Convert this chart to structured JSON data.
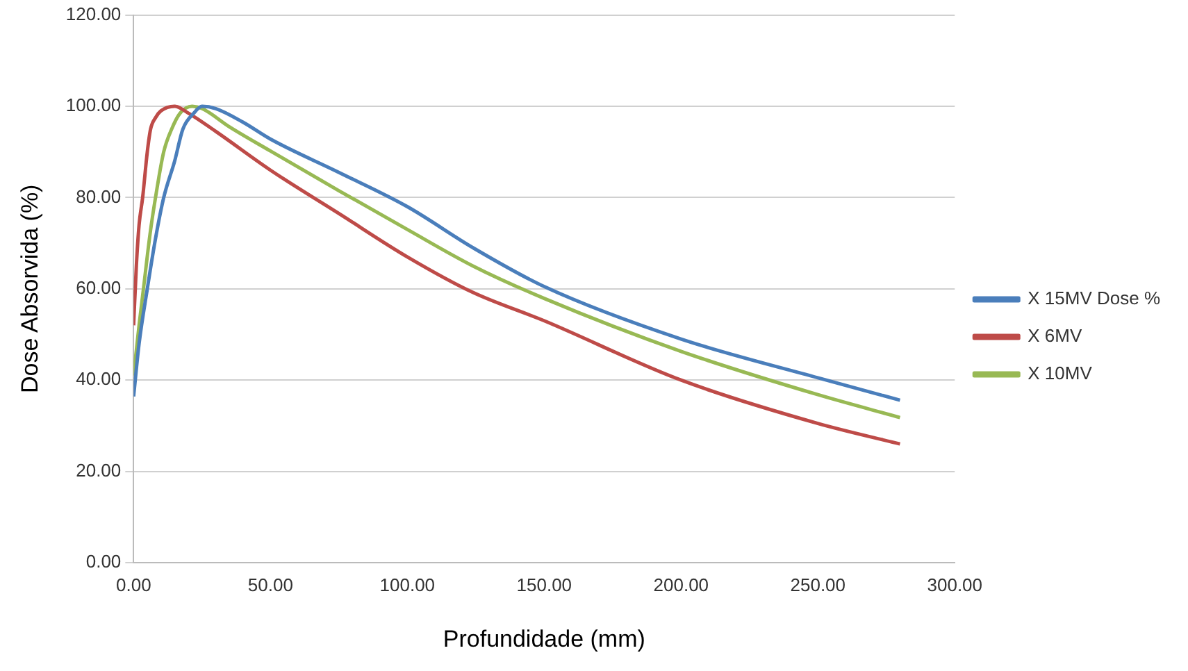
{
  "chart_data": {
    "type": "line",
    "xlabel": "Profundidade (mm)",
    "ylabel": "Dose Absorvida (%)",
    "xlim": [
      0,
      300
    ],
    "xticks": [
      {
        "value": 0,
        "label": "0.00"
      },
      {
        "value": 50,
        "label": "50.00"
      },
      {
        "value": 100,
        "label": "100.00"
      },
      {
        "value": 150,
        "label": "150.00"
      },
      {
        "value": 200,
        "label": "200.00"
      },
      {
        "value": 250,
        "label": "250.00"
      },
      {
        "value": 300,
        "label": "300.00"
      }
    ],
    "ylim": [
      0,
      120
    ],
    "yticks": [
      {
        "value": 0,
        "label": "0.00"
      },
      {
        "value": 20,
        "label": "20.00"
      },
      {
        "value": 40,
        "label": "40.00"
      },
      {
        "value": 60,
        "label": "60.00"
      },
      {
        "value": 80,
        "label": "80.00"
      },
      {
        "value": 100,
        "label": "100.00"
      },
      {
        "value": 120,
        "label": "120.00"
      }
    ],
    "grid": "y",
    "legend": "right",
    "marker": "none",
    "line_style": "solid",
    "series": [
      {
        "name": "X 15MV Dose %",
        "color": "#4a7ebb",
        "x": [
          0,
          2,
          5,
          8,
          11,
          15,
          18,
          22,
          25,
          30,
          40,
          50,
          75,
          100,
          124,
          150,
          200,
          250,
          280
        ],
        "values": [
          36.4,
          48,
          60,
          71,
          80,
          88,
          95,
          98.5,
          100,
          99.5,
          96.5,
          92.8,
          85.5,
          78,
          69,
          60.5,
          49,
          40.5,
          35.6
        ]
      },
      {
        "name": "X 6MV",
        "color": "#be4b48",
        "x": [
          0,
          1,
          2,
          3.3,
          5,
          6.2,
          8,
          10,
          15,
          20,
          30,
          50,
          75,
          100,
          124,
          150,
          200,
          250,
          280
        ],
        "values": [
          52,
          65,
          74,
          80,
          90,
          95,
          97.5,
          99,
          100,
          98.5,
          94.5,
          86,
          76.5,
          67,
          59.2,
          53,
          40,
          30.5,
          26
        ]
      },
      {
        "name": "X 10MV",
        "color": "#98b954",
        "x": [
          0,
          2,
          3.6,
          6,
          8,
          11,
          13.9,
          17,
          21.4,
          25,
          35,
          50,
          75,
          100,
          124,
          150,
          200,
          250,
          280
        ],
        "values": [
          41,
          52,
          60,
          72,
          80,
          90,
          95,
          98.5,
          100,
          99.5,
          95.5,
          90.2,
          81.5,
          73,
          65,
          57.9,
          46.3,
          36.8,
          31.8
        ]
      }
    ]
  }
}
